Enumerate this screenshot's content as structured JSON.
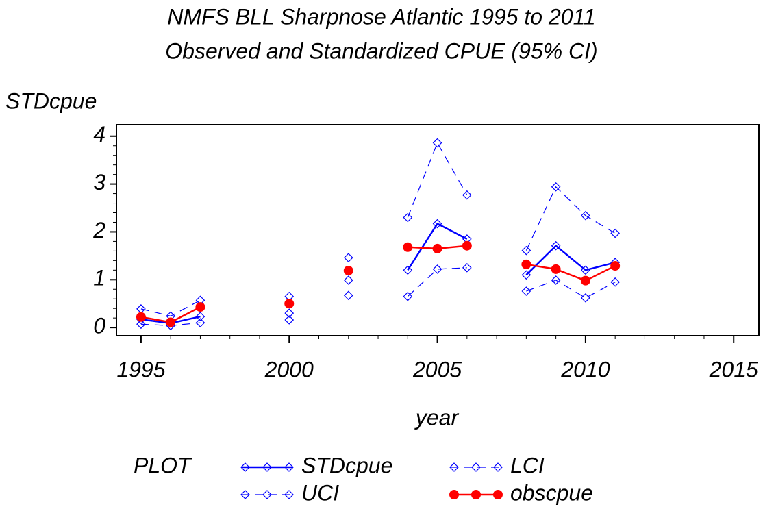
{
  "chart_data": {
    "type": "line",
    "title": "NMFS BLL Sharpnose Atlantic 1995 to 2011",
    "subtitle": "Observed and Standardized CPUE (95% CI)",
    "x_label": "year",
    "y_label": "STDcpue",
    "legend_title": "PLOT",
    "x": [
      1995,
      1996,
      1997,
      1998,
      1999,
      2000,
      2001,
      2002,
      2003,
      2004,
      2005,
      2006,
      2007,
      2008,
      2009,
      2010,
      2011
    ],
    "series": [
      {
        "name": "STDcpue",
        "color": "#0000ff",
        "dash": false,
        "marker": "diamond",
        "values": [
          0.17,
          0.09,
          0.23,
          null,
          null,
          0.3,
          null,
          0.99,
          null,
          1.2,
          2.17,
          1.85,
          null,
          1.1,
          1.71,
          1.2,
          1.36
        ]
      },
      {
        "name": "UCI",
        "color": "#0000ff",
        "dash": true,
        "marker": "diamond",
        "values": [
          0.39,
          0.24,
          0.57,
          null,
          null,
          0.65,
          null,
          1.46,
          null,
          2.3,
          3.86,
          2.77,
          null,
          1.61,
          2.94,
          2.34,
          1.97
        ]
      },
      {
        "name": "LCI",
        "color": "#0000ff",
        "dash": true,
        "marker": "diamond",
        "values": [
          0.07,
          0.04,
          0.1,
          null,
          null,
          0.16,
          null,
          0.67,
          null,
          0.65,
          1.22,
          1.25,
          null,
          0.76,
          0.99,
          0.62,
          0.95
        ]
      },
      {
        "name": "obscpue",
        "color": "#ff0000",
        "dash": false,
        "marker": "circle",
        "values": [
          0.22,
          0.11,
          0.43,
          null,
          null,
          0.5,
          null,
          1.19,
          null,
          1.68,
          1.65,
          1.71,
          null,
          1.32,
          1.22,
          0.98,
          1.29
        ]
      }
    ],
    "xlim": [
      1994.17,
      2015.85
    ],
    "xticks": [
      1995,
      2000,
      2005,
      2010,
      2015
    ],
    "ylim": [
      -0.17,
      4.24
    ],
    "yticks": [
      0,
      1,
      2,
      3,
      4
    ]
  }
}
